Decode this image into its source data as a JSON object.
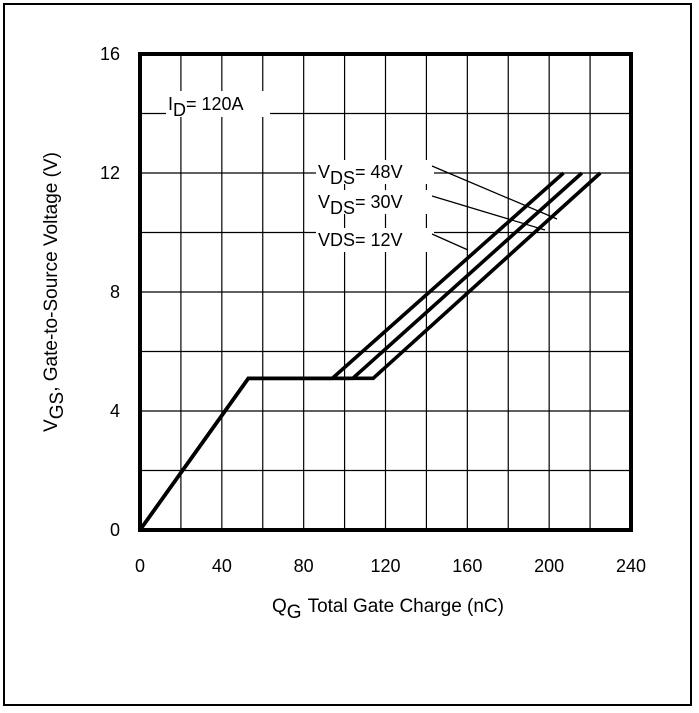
{
  "chart_data": {
    "type": "line",
    "xlabel": {
      "main": "Q",
      "sub": "G",
      "rest": "Total Gate Charge (nC)"
    },
    "ylabel": {
      "main": "V",
      "sub": "GS",
      "rest": ", Gate-to-Source Voltage (V)"
    },
    "xlim": [
      0,
      240
    ],
    "ylim": [
      0,
      16
    ],
    "xticks": [
      0,
      40,
      80,
      120,
      160,
      200,
      240
    ],
    "yticks": [
      0,
      4,
      8,
      12,
      16
    ],
    "grid": true,
    "annotation": {
      "main": "I",
      "sub": "D",
      "rest": "= 120A"
    },
    "series": [
      {
        "label_main": "V",
        "label_sub": "DS",
        "label_rest": "= 48V",
        "x": [
          0,
          53,
          94,
          207
        ],
        "y": [
          0,
          5.1,
          5.1,
          12
        ]
      },
      {
        "label_main": "V",
        "label_sub": "DS",
        "label_rest": "= 30V",
        "x": [
          0,
          53,
          104,
          216
        ],
        "y": [
          0,
          5.1,
          5.1,
          12
        ]
      },
      {
        "label_main": "VDS",
        "label_sub": "",
        "label_rest": "= 12V",
        "x": [
          0,
          53,
          114,
          225
        ],
        "y": [
          0,
          5.1,
          5.1,
          12
        ]
      }
    ]
  }
}
